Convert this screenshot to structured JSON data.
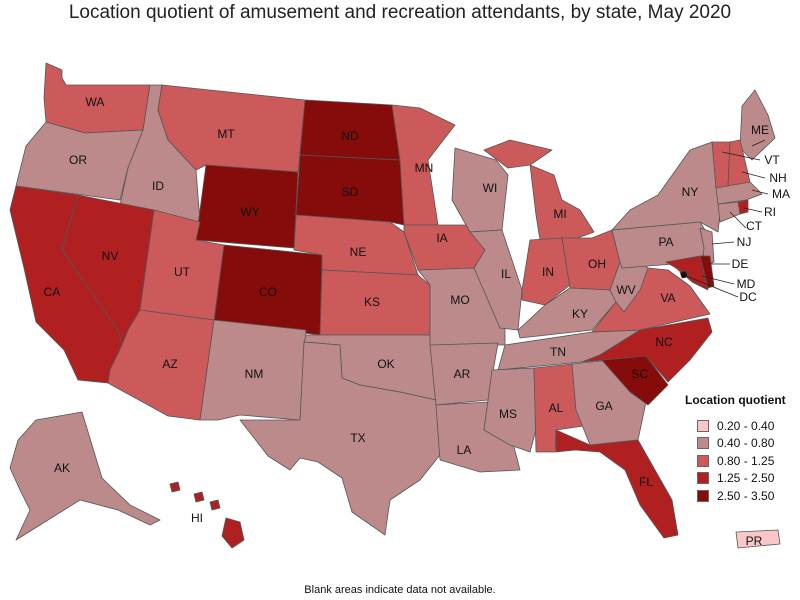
{
  "title": "Location quotient of amusement and recreation attendants, by state, May 2020",
  "footnote": "Blank areas indicate data not available.",
  "legend": {
    "title": "Location quotient",
    "items": [
      {
        "label": "0.20 - 0.40",
        "color": "#f9c7c7"
      },
      {
        "label": "0.40 - 0.80",
        "color": "#bc8a8a"
      },
      {
        "label": "0.80 - 1.25",
        "color": "#cd5a5a"
      },
      {
        "label": "1.25 - 2.50",
        "color": "#b02020"
      },
      {
        "label": "2.50 - 3.50",
        "color": "#860c0c"
      }
    ]
  },
  "states": {
    "WA": {
      "label": "WA",
      "cls": 2
    },
    "OR": {
      "label": "OR",
      "cls": 1
    },
    "CA": {
      "label": "CA",
      "cls": 3
    },
    "ID": {
      "label": "ID",
      "cls": 1
    },
    "NV": {
      "label": "NV",
      "cls": 3
    },
    "MT": {
      "label": "MT",
      "cls": 2
    },
    "WY": {
      "label": "WY",
      "cls": 4
    },
    "UT": {
      "label": "UT",
      "cls": 2
    },
    "AZ": {
      "label": "AZ",
      "cls": 2
    },
    "CO": {
      "label": "CO",
      "cls": 4
    },
    "NM": {
      "label": "NM",
      "cls": 1
    },
    "ND": {
      "label": "ND",
      "cls": 4
    },
    "SD": {
      "label": "SD",
      "cls": 4
    },
    "NE": {
      "label": "NE",
      "cls": 2
    },
    "KS": {
      "label": "KS",
      "cls": 2
    },
    "OK": {
      "label": "OK",
      "cls": 1
    },
    "TX": {
      "label": "TX",
      "cls": 1
    },
    "MN": {
      "label": "MN",
      "cls": 2
    },
    "IA": {
      "label": "IA",
      "cls": 2
    },
    "MO": {
      "label": "MO",
      "cls": 1
    },
    "AR": {
      "label": "AR",
      "cls": 1
    },
    "LA": {
      "label": "LA",
      "cls": 1
    },
    "WI": {
      "label": "WI",
      "cls": 1
    },
    "IL": {
      "label": "IL",
      "cls": 1
    },
    "MI": {
      "label": "MI",
      "cls": 2
    },
    "IN": {
      "label": "IN",
      "cls": 2
    },
    "OH": {
      "label": "OH",
      "cls": 2
    },
    "KY": {
      "label": "KY",
      "cls": 1
    },
    "TN": {
      "label": "TN",
      "cls": 1
    },
    "MS": {
      "label": "MS",
      "cls": 1
    },
    "AL": {
      "label": "AL",
      "cls": 2
    },
    "GA": {
      "label": "GA",
      "cls": 1
    },
    "FL": {
      "label": "FL",
      "cls": 3
    },
    "SC": {
      "label": "SC",
      "cls": 4
    },
    "NC": {
      "label": "NC",
      "cls": 3
    },
    "VA": {
      "label": "VA",
      "cls": 2
    },
    "WV": {
      "label": "WV",
      "cls": 1
    },
    "PA": {
      "label": "PA",
      "cls": 1
    },
    "NY": {
      "label": "NY",
      "cls": 1
    },
    "ME": {
      "label": "ME",
      "cls": 1
    },
    "VT": {
      "label": "VT",
      "cls": 2
    },
    "NH": {
      "label": "NH",
      "cls": 2
    },
    "MA": {
      "label": "MA",
      "cls": 1
    },
    "RI": {
      "label": "RI",
      "cls": 3
    },
    "CT": {
      "label": "CT",
      "cls": 1
    },
    "NJ": {
      "label": "NJ",
      "cls": 1
    },
    "DE": {
      "label": "DE",
      "cls": 4
    },
    "MD": {
      "label": "MD",
      "cls": 3
    },
    "DC": {
      "label": "DC",
      "cls": 4
    },
    "AK": {
      "label": "AK",
      "cls": 1
    },
    "HI": {
      "label": "HI",
      "cls": 3
    },
    "PR": {
      "label": "PR",
      "cls": 0
    }
  }
}
